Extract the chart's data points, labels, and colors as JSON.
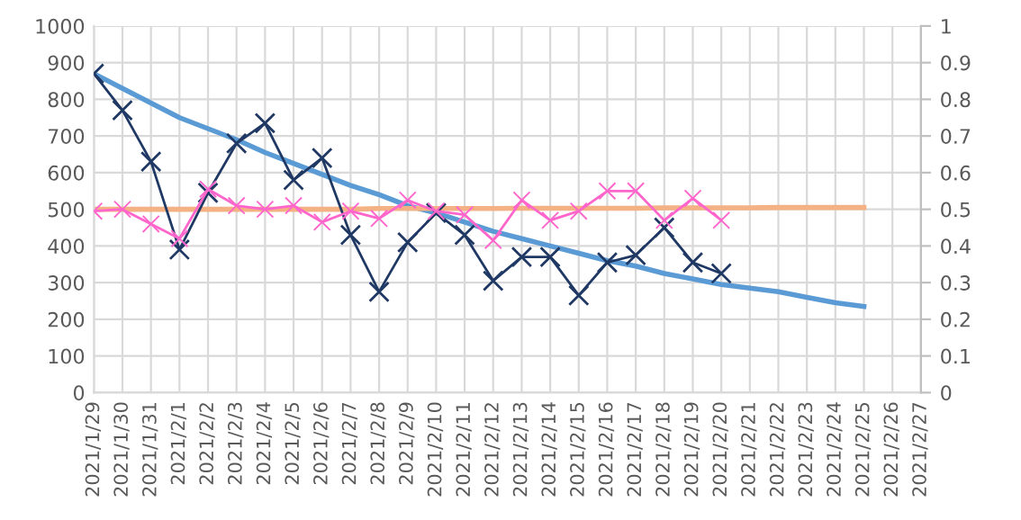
{
  "chart_data": {
    "type": "line",
    "categories": [
      "2021/1/29",
      "2021/1/30",
      "2021/1/31",
      "2021/2/1",
      "2021/2/2",
      "2021/2/3",
      "2021/2/4",
      "2021/2/5",
      "2021/2/6",
      "2021/2/7",
      "2021/2/8",
      "2021/2/9",
      "2021/2/10",
      "2021/2/11",
      "2021/2/12",
      "2021/2/13",
      "2021/2/14",
      "2021/2/15",
      "2021/2/16",
      "2021/2/17",
      "2021/2/18",
      "2021/2/19",
      "2021/2/20",
      "2021/2/21",
      "2021/2/22",
      "2021/2/23",
      "2021/2/24",
      "2021/2/25",
      "2021/2/26",
      "2021/2/27"
    ],
    "series": [
      {
        "color": "#5b9bd5",
        "marker": "none",
        "values": [
          870,
          830,
          790,
          750,
          720,
          690,
          655,
          625,
          595,
          565,
          540,
          510,
          490,
          465,
          440,
          420,
          400,
          380,
          360,
          345,
          325,
          310,
          295,
          285,
          275,
          260,
          245,
          235,
          null,
          null
        ]
      },
      {
        "color": "#f4b183",
        "marker": "none",
        "values": [
          500,
          500,
          500,
          500,
          500,
          500,
          500,
          500,
          500,
          500,
          502,
          502,
          502,
          502,
          502,
          503,
          503,
          503,
          503,
          503,
          504,
          504,
          504,
          504,
          505,
          505,
          505,
          505,
          null,
          null
        ]
      },
      {
        "color": "#1f3864",
        "marker": "cross",
        "values": [
          870,
          770,
          630,
          390,
          545,
          680,
          735,
          580,
          640,
          430,
          275,
          410,
          490,
          430,
          305,
          370,
          370,
          265,
          355,
          375,
          450,
          355,
          325,
          null,
          null,
          null,
          null,
          null,
          null,
          null
        ]
      },
      {
        "color": "#ff66cc",
        "marker": "cross",
        "values": [
          495,
          500,
          460,
          420,
          555,
          510,
          500,
          510,
          465,
          495,
          475,
          525,
          495,
          485,
          415,
          525,
          470,
          495,
          550,
          550,
          470,
          530,
          470,
          null,
          null,
          null,
          null,
          null,
          null,
          null
        ]
      }
    ],
    "ylim": [
      0,
      1000
    ],
    "yticks": [
      0,
      100,
      200,
      300,
      400,
      500,
      600,
      700,
      800,
      900,
      1000
    ],
    "y2lim": [
      0,
      1
    ],
    "y2ticks": [
      0,
      0.1,
      0.2,
      0.3,
      0.4,
      0.5,
      0.6,
      0.7,
      0.8,
      0.9,
      1
    ],
    "grid": true,
    "legend": false
  }
}
